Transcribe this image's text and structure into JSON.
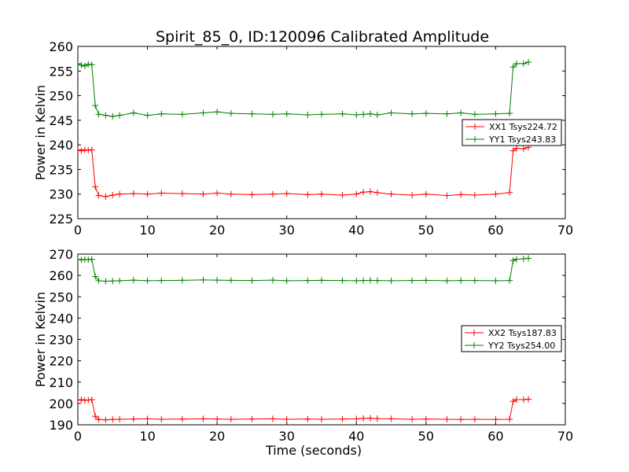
{
  "title": "Spirit_85_0, ID:120096 Calibrated Amplitude",
  "chart_data": [
    {
      "type": "line",
      "ylabel": "Power in Kelvin",
      "xlabel": "",
      "xlim": [
        0,
        70
      ],
      "ylim": [
        225,
        260
      ],
      "xticks": [
        0,
        10,
        20,
        30,
        40,
        50,
        60,
        70
      ],
      "yticks": [
        225,
        230,
        235,
        240,
        245,
        250,
        255,
        260
      ],
      "grid": false,
      "legend_position": "right",
      "series": [
        {
          "name": "XX1 Tsys224.72",
          "color": "#ff0000",
          "x": [
            0.0,
            0.5,
            1.0,
            1.5,
            2.0,
            2.5,
            3.0,
            4.0,
            5.0,
            6.0,
            8.0,
            10.0,
            12.0,
            15.0,
            18.0,
            20.0,
            22.0,
            25.0,
            28.0,
            30.0,
            33.0,
            35.0,
            38.0,
            40.0,
            41.0,
            42.0,
            43.0,
            45.0,
            48.0,
            50.0,
            53.0,
            55.0,
            57.0,
            60.0,
            62.0,
            62.5,
            63.0,
            64.0,
            64.7
          ],
          "y": [
            239.0,
            238.8,
            239.0,
            238.9,
            239.0,
            231.5,
            229.7,
            229.5,
            229.8,
            230.0,
            230.1,
            230.0,
            230.2,
            230.1,
            230.0,
            230.2,
            230.0,
            229.9,
            230.0,
            230.1,
            229.9,
            230.0,
            229.8,
            230.0,
            230.4,
            230.5,
            230.3,
            230.0,
            229.8,
            230.0,
            229.7,
            229.9,
            229.8,
            230.0,
            230.3,
            238.8,
            239.3,
            239.2,
            239.5
          ]
        },
        {
          "name": "YY1 Tsys243.83",
          "color": "#008000",
          "x": [
            0.0,
            0.5,
            1.0,
            1.5,
            2.0,
            2.5,
            3.0,
            4.0,
            5.0,
            6.0,
            8.0,
            10.0,
            12.0,
            15.0,
            18.0,
            20.0,
            22.0,
            25.0,
            28.0,
            30.0,
            33.0,
            35.0,
            38.0,
            40.0,
            41.0,
            42.0,
            43.0,
            45.0,
            48.0,
            50.0,
            53.0,
            55.0,
            57.0,
            60.0,
            62.0,
            62.5,
            63.0,
            64.0,
            64.7
          ],
          "y": [
            256.5,
            256.2,
            256.0,
            256.4,
            256.3,
            248.0,
            246.2,
            246.0,
            245.8,
            246.0,
            246.5,
            246.0,
            246.3,
            246.2,
            246.5,
            246.7,
            246.4,
            246.3,
            246.2,
            246.3,
            246.1,
            246.2,
            246.3,
            246.1,
            246.2,
            246.3,
            246.1,
            246.5,
            246.3,
            246.4,
            246.3,
            246.5,
            246.2,
            246.3,
            246.4,
            255.8,
            256.5,
            256.5,
            256.8
          ]
        }
      ]
    },
    {
      "type": "line",
      "ylabel": "Power in Kelvin",
      "xlabel": "Time (seconds)",
      "xlim": [
        0,
        70
      ],
      "ylim": [
        190,
        270
      ],
      "xticks": [
        0,
        10,
        20,
        30,
        40,
        50,
        60,
        70
      ],
      "yticks": [
        190,
        200,
        210,
        220,
        230,
        240,
        250,
        260,
        270
      ],
      "grid": false,
      "legend_position": "right",
      "series": [
        {
          "name": "XX2 Tsys187.83",
          "color": "#ff0000",
          "x": [
            0.0,
            0.5,
            1.0,
            1.5,
            2.0,
            2.5,
            3.0,
            4.0,
            5.0,
            6.0,
            8.0,
            10.0,
            12.0,
            15.0,
            18.0,
            20.0,
            22.0,
            25.0,
            28.0,
            30.0,
            33.0,
            35.0,
            38.0,
            40.0,
            41.0,
            42.0,
            43.0,
            45.0,
            48.0,
            50.0,
            53.0,
            55.0,
            57.0,
            60.0,
            62.0,
            62.5,
            63.0,
            64.0,
            64.7
          ],
          "y": [
            201.5,
            201.8,
            201.5,
            201.6,
            201.8,
            194.0,
            192.5,
            192.3,
            192.5,
            192.6,
            192.7,
            192.8,
            192.6,
            192.7,
            192.8,
            192.7,
            192.6,
            192.7,
            192.8,
            192.6,
            192.7,
            192.6,
            192.7,
            192.8,
            193.0,
            193.1,
            192.9,
            192.8,
            192.6,
            192.7,
            192.6,
            192.5,
            192.6,
            192.5,
            192.6,
            201.0,
            201.8,
            201.8,
            202.0
          ]
        },
        {
          "name": "YY2 Tsys254.00",
          "color": "#008000",
          "x": [
            0.0,
            0.5,
            1.0,
            1.5,
            2.0,
            2.5,
            3.0,
            4.0,
            5.0,
            6.0,
            8.0,
            10.0,
            12.0,
            15.0,
            18.0,
            20.0,
            22.0,
            25.0,
            28.0,
            30.0,
            33.0,
            35.0,
            38.0,
            40.0,
            41.0,
            42.0,
            43.0,
            45.0,
            48.0,
            50.0,
            53.0,
            55.0,
            57.0,
            60.0,
            62.0,
            62.5,
            63.0,
            64.0,
            64.7
          ],
          "y": [
            267.5,
            267.3,
            267.5,
            267.4,
            267.6,
            259.5,
            257.5,
            257.3,
            257.4,
            257.5,
            257.8,
            257.5,
            257.6,
            257.7,
            257.9,
            257.8,
            257.7,
            257.6,
            257.8,
            257.5,
            257.6,
            257.7,
            257.6,
            257.5,
            257.6,
            257.7,
            257.6,
            257.5,
            257.6,
            257.7,
            257.5,
            257.6,
            257.6,
            257.5,
            257.6,
            267.0,
            267.6,
            267.8,
            268.0
          ]
        }
      ]
    }
  ]
}
